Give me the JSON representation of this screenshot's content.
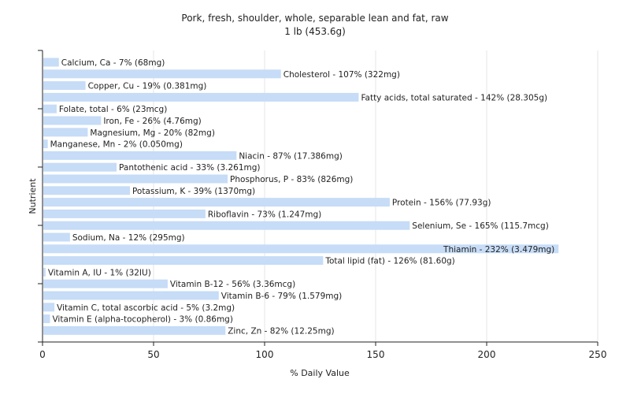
{
  "chart_data": {
    "type": "bar",
    "orientation": "horizontal",
    "title": "Pork, fresh, shoulder, whole, separable lean and fat, raw",
    "subtitle": "1 lb (453.6g)",
    "xlabel": "% Daily Value",
    "ylabel": "Nutrient",
    "xlim": [
      0,
      250
    ],
    "xticks": [
      0,
      50,
      100,
      150,
      200,
      250
    ],
    "grid": true,
    "bar_color": "#c6dcf7",
    "categories": [
      "Calcium, Ca",
      "Cholesterol",
      "Copper, Cu",
      "Fatty acids, total saturated",
      "Folate, total",
      "Iron, Fe",
      "Magnesium, Mg",
      "Manganese, Mn",
      "Niacin",
      "Pantothenic acid",
      "Phosphorus, P",
      "Potassium, K",
      "Protein",
      "Riboflavin",
      "Selenium, Se",
      "Sodium, Na",
      "Thiamin",
      "Total lipid (fat)",
      "Vitamin A, IU",
      "Vitamin B-12",
      "Vitamin B-6",
      "Vitamin C, total ascorbic acid",
      "Vitamin E (alpha-tocopherol)",
      "Zinc, Zn"
    ],
    "values": [
      7,
      107,
      19,
      142,
      6,
      26,
      20,
      2,
      87,
      33,
      83,
      39,
      156,
      73,
      165,
      12,
      232,
      126,
      1,
      56,
      79,
      5,
      3,
      82
    ],
    "labels": [
      "Calcium, Ca - 7% (68mg)",
      "Cholesterol - 107% (322mg)",
      "Copper, Cu - 19% (0.381mg)",
      "Fatty acids, total saturated - 142% (28.305g)",
      "Folate, total - 6% (23mcg)",
      "Iron, Fe - 26% (4.76mg)",
      "Magnesium, Mg - 20% (82mg)",
      "Manganese, Mn - 2% (0.050mg)",
      "Niacin - 87% (17.386mg)",
      "Pantothenic acid - 33% (3.261mg)",
      "Phosphorus, P - 83% (826mg)",
      "Potassium, K - 39% (1370mg)",
      "Protein - 156% (77.93g)",
      "Riboflavin - 73% (1.247mg)",
      "Selenium, Se - 165% (115.7mcg)",
      "Sodium, Na - 12% (295mg)",
      "Thiamin - 232% (3.479mg)",
      "Total lipid (fat) - 126% (81.60g)",
      "Vitamin A, IU - 1% (32IU)",
      "Vitamin B-12 - 56% (3.36mcg)",
      "Vitamin B-6 - 79% (1.579mg)",
      "Vitamin C, total ascorbic acid - 5% (3.2mg)",
      "Vitamin E (alpha-tocopherol) - 3% (0.86mg)",
      "Zinc, Zn - 82% (12.25mg)"
    ]
  }
}
